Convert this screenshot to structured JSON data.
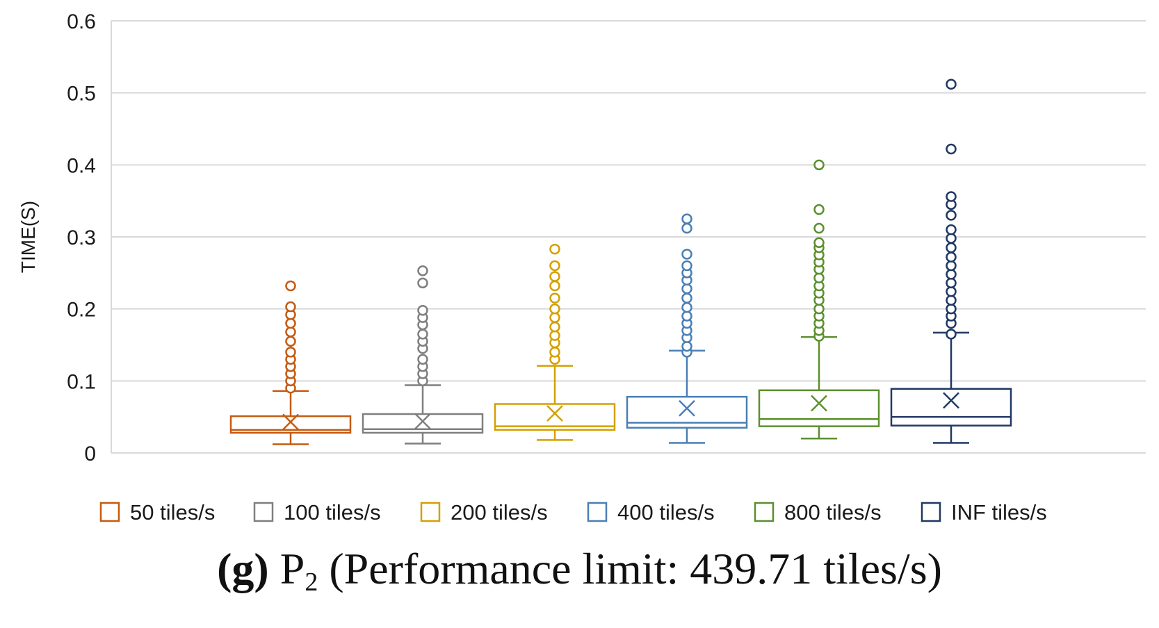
{
  "chart_data": {
    "type": "box",
    "ylabel": "TIME(S)",
    "xlabel": "",
    "ylim": [
      0,
      0.6
    ],
    "yticks": [
      "0",
      "0.1",
      "0.2",
      "0.3",
      "0.4",
      "0.5",
      "0.6"
    ],
    "grid": true,
    "legend_position": "bottom",
    "series": [
      {
        "name": "50 tiles/s",
        "color": "#c55a11",
        "whisker_low": 0.012,
        "q1": 0.028,
        "median": 0.032,
        "q3": 0.051,
        "whisker_high": 0.086,
        "mean": 0.043,
        "outliers": [
          0.09,
          0.1,
          0.11,
          0.12,
          0.13,
          0.14,
          0.155,
          0.168,
          0.18,
          0.192,
          0.203,
          0.232
        ]
      },
      {
        "name": "100 tiles/s",
        "color": "#7f7f7f",
        "whisker_low": 0.013,
        "q1": 0.028,
        "median": 0.033,
        "q3": 0.054,
        "whisker_high": 0.094,
        "mean": 0.044,
        "outliers": [
          0.1,
          0.11,
          0.12,
          0.13,
          0.145,
          0.155,
          0.165,
          0.178,
          0.188,
          0.198,
          0.236,
          0.253
        ]
      },
      {
        "name": "200 tiles/s",
        "color": "#d4a000",
        "whisker_low": 0.018,
        "q1": 0.032,
        "median": 0.037,
        "q3": 0.068,
        "whisker_high": 0.121,
        "mean": 0.055,
        "outliers": [
          0.13,
          0.14,
          0.153,
          0.163,
          0.175,
          0.188,
          0.2,
          0.215,
          0.232,
          0.245,
          0.26,
          0.283
        ]
      },
      {
        "name": "400 tiles/s",
        "color": "#4a7fb5",
        "whisker_low": 0.014,
        "q1": 0.035,
        "median": 0.042,
        "q3": 0.078,
        "whisker_high": 0.142,
        "mean": 0.062,
        "outliers": [
          0.14,
          0.148,
          0.16,
          0.17,
          0.18,
          0.19,
          0.202,
          0.215,
          0.228,
          0.24,
          0.25,
          0.26,
          0.276,
          0.312,
          0.325
        ]
      },
      {
        "name": "800 tiles/s",
        "color": "#5b8f2f",
        "whisker_low": 0.02,
        "q1": 0.037,
        "median": 0.047,
        "q3": 0.087,
        "whisker_high": 0.161,
        "mean": 0.069,
        "outliers": [
          0.162,
          0.17,
          0.18,
          0.19,
          0.2,
          0.212,
          0.222,
          0.232,
          0.243,
          0.255,
          0.265,
          0.275,
          0.285,
          0.292,
          0.312,
          0.338,
          0.4
        ]
      },
      {
        "name": "INF tiles/s",
        "color": "#1f3864",
        "whisker_low": 0.014,
        "q1": 0.038,
        "median": 0.05,
        "q3": 0.089,
        "whisker_high": 0.167,
        "mean": 0.073,
        "outliers": [
          0.165,
          0.18,
          0.19,
          0.2,
          0.212,
          0.224,
          0.236,
          0.248,
          0.26,
          0.272,
          0.285,
          0.298,
          0.31,
          0.33,
          0.345,
          0.356,
          0.422,
          0.512
        ]
      }
    ]
  },
  "caption": {
    "letter": "(g)",
    "symbol": "P",
    "subscript": "2",
    "text": "(Performance limit: 439.71 tiles/s)"
  }
}
